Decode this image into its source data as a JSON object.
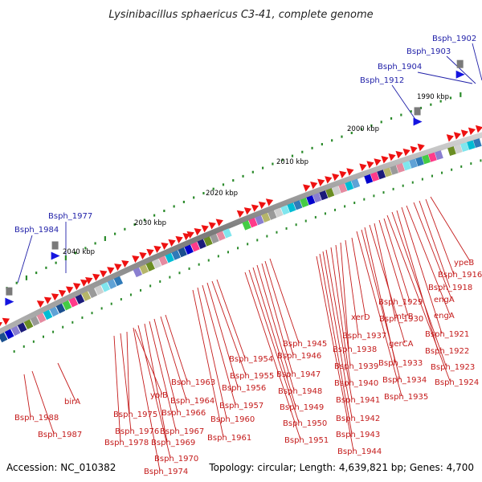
{
  "title": "Lysinibacillus sphaericus C3-41, complete genome",
  "footer": {
    "accession": "Accession: NC_010382",
    "topology": "Topology: circular; Length: 4,639,821 bp; Genes: 4,700"
  },
  "scale_labels": [
    "1990 kbp",
    "2000 kbp",
    "2010 kbp",
    "2020 kbp",
    "2030 kbp",
    "2040 kbp"
  ],
  "upper_labels": [
    "Bsph_1902",
    "Bsph_1903",
    "Bsph_1904",
    "Bsph_1912",
    "Bsph_1977",
    "Bsph_1984"
  ],
  "lower_labels": [
    "ypeB",
    "Bsph_1916",
    "Bsph_1918",
    "engA",
    "engA",
    "Bsph_1921",
    "Bsph_1922",
    "Bsph_1923",
    "Bsph_1924",
    "Bsph_1929",
    "mtrB",
    "Bsph_1930",
    "gerCA",
    "Bsph_1933",
    "Bsph_1934",
    "Bsph_1935",
    "xerD",
    "Bsph_1937",
    "Bsph_1938",
    "Bsph_1939",
    "Bsph_1940",
    "Bsph_1941",
    "Bsph_1942",
    "Bsph_1943",
    "Bsph_1944",
    "Bsph_1945",
    "Bsph_1946",
    "Bsph_1947",
    "Bsph_1948",
    "Bsph_1949",
    "Bsph_1950",
    "Bsph_1951",
    "Bsph_1954",
    "Bsph_1955",
    "Bsph_1956",
    "Bsph_1957",
    "Bsph_1960",
    "Bsph_1961",
    "Bsph_1963",
    "Bsph_1964",
    "Bsph_1966",
    "Bsph_1967",
    "Bsph_1969",
    "Bsph_1970",
    "Bsph_1974",
    "ypiB",
    "Bsph_1975",
    "Bsph_1976",
    "Bsph_1978",
    "birA",
    "Bsph_1987",
    "Bsph_1988"
  ],
  "colors": {
    "cds_arrow": "#ee1111",
    "label_red": "#c41b1b",
    "label_blue": "#1f1fa8",
    "tick": "#2a8a2a",
    "ring": "#8a8a8a"
  }
}
